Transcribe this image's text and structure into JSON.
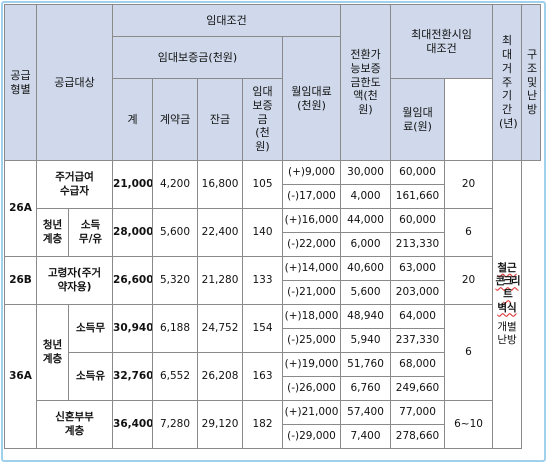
{
  "headers": {
    "supply_type": "공급형별",
    "supply_target": "공급대상",
    "lease_conditions": "임대조건",
    "lease_deposit": "임대보증금(천원)",
    "total": "계",
    "contract_deposit": "계약금",
    "balance": "잔금",
    "monthly_rent": "월임대료(천원)",
    "convertible_deposit_limit": "전환가능보증금한도액(천원)",
    "max_conversion_conditions": "최대전환시임대조건",
    "max_deposit": "임대보증금(천원)",
    "max_monthly_rent": "월임대료(원)",
    "max_residence_period": "최대거주기간(년)",
    "structure_heating": "구조및난방"
  },
  "structure": {
    "line1": "철근",
    "line2": "콘크리트",
    "line3": "벽식",
    "line4": "개별",
    "line5": "난방"
  },
  "groups": [
    {
      "type": "26A",
      "rows": [
        {
          "target": "주거급여수급자",
          "total": "21,000",
          "contract": "4,200",
          "balance": "16,800",
          "rent": "105",
          "conversions": [
            {
              "amount": "(+)9,000",
              "deposit": "30,000",
              "monthly": "60,000"
            },
            {
              "amount": "(-)17,000",
              "deposit": "4,000",
              "monthly": "161,660"
            }
          ],
          "period": "20"
        },
        {
          "target_main": "청년계층",
          "target_sub": "소득무/유",
          "total": "28,000",
          "contract": "5,600",
          "balance": "22,400",
          "rent": "140",
          "conversions": [
            {
              "amount": "(+)16,000",
              "deposit": "44,000",
              "monthly": "60,000"
            },
            {
              "amount": "(-)22,000",
              "deposit": "6,000",
              "monthly": "213,330"
            }
          ],
          "period": "6"
        }
      ]
    },
    {
      "type": "26B",
      "rows": [
        {
          "target": "고령자(주거약자용)",
          "total": "26,600",
          "contract": "5,320",
          "balance": "21,280",
          "rent": "133",
          "conversions": [
            {
              "amount": "(+)14,000",
              "deposit": "40,600",
              "monthly": "63,000"
            },
            {
              "amount": "(-)21,000",
              "deposit": "5,600",
              "monthly": "203,000"
            }
          ],
          "period": "20"
        }
      ]
    },
    {
      "type": "36A",
      "youth_label": "청년계층",
      "rows": [
        {
          "target_sub": "소득무",
          "total": "30,940",
          "contract": "6,188",
          "balance": "24,752",
          "rent": "154",
          "conversions": [
            {
              "amount": "(+)18,000",
              "deposit": "48,940",
              "monthly": "64,000"
            },
            {
              "amount": "(-)25,000",
              "deposit": "5,940",
              "monthly": "237,330"
            }
          ]
        },
        {
          "target_sub": "소득유",
          "total": "32,760",
          "contract": "6,552",
          "balance": "26,208",
          "rent": "163",
          "conversions": [
            {
              "amount": "(+)19,000",
              "deposit": "51,760",
              "monthly": "68,000"
            },
            {
              "amount": "(-)26,000",
              "deposit": "6,760",
              "monthly": "249,660"
            }
          ]
        },
        {
          "target": "신혼부부계층",
          "total": "36,400",
          "contract": "7,280",
          "balance": "29,120",
          "rent": "182",
          "conversions": [
            {
              "amount": "(+)21,000",
              "deposit": "57,400",
              "monthly": "77,000"
            },
            {
              "amount": "(-)29,000",
              "deposit": "7,400",
              "monthly": "278,660"
            }
          ],
          "period": "6~10"
        }
      ],
      "youth_period": "6"
    }
  ]
}
